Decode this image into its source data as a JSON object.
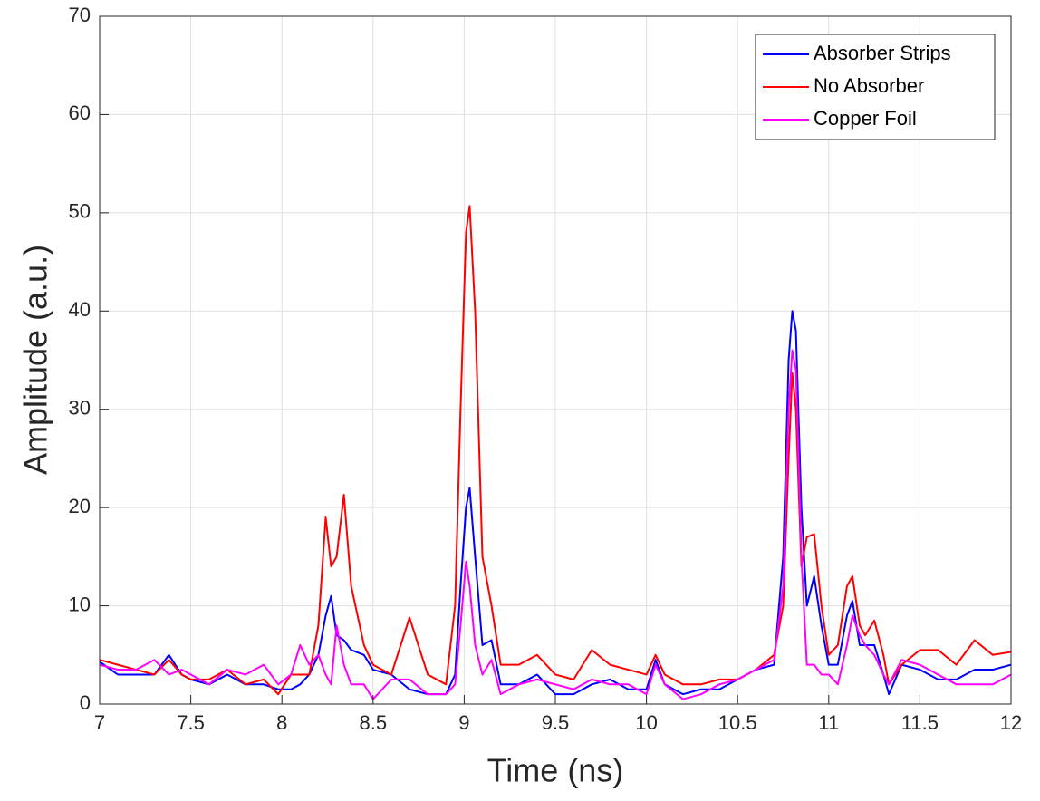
{
  "chart_data": {
    "type": "line",
    "xlabel": "Time (ns)",
    "ylabel": "Amplitude (a.u.)",
    "x": [
      7,
      7.1,
      7.2,
      7.3,
      7.38,
      7.45,
      7.5,
      7.6,
      7.7,
      7.8,
      7.9,
      7.98,
      8.05,
      8.1,
      8.15,
      8.2,
      8.24,
      8.27,
      8.3,
      8.34,
      8.38,
      8.45,
      8.5,
      8.6,
      8.7,
      8.8,
      8.9,
      8.95,
      8.98,
      9.01,
      9.03,
      9.06,
      9.1,
      9.15,
      9.2,
      9.3,
      9.4,
      9.5,
      9.6,
      9.7,
      9.8,
      9.9,
      10,
      10.05,
      10.1,
      10.2,
      10.3,
      10.4,
      10.5,
      10.6,
      10.7,
      10.75,
      10.78,
      10.8,
      10.82,
      10.85,
      10.88,
      10.92,
      10.96,
      11,
      11.05,
      11.1,
      11.13,
      11.17,
      11.2,
      11.25,
      11.3,
      11.33,
      11.4,
      11.5,
      11.6,
      11.7,
      11.8,
      11.9,
      12
    ],
    "series": [
      {
        "name": "Absorber Strips",
        "color": "#0000ff",
        "values": [
          4.3,
          3,
          3,
          3,
          5,
          3,
          2.5,
          2,
          3,
          2,
          2,
          1.5,
          1.5,
          2,
          3,
          5,
          9,
          11,
          7,
          6.5,
          5.5,
          5,
          3.5,
          3,
          1.5,
          1,
          1,
          3,
          12,
          20,
          22,
          15,
          6,
          6.5,
          2,
          2,
          3,
          1,
          1,
          2,
          2.5,
          1.5,
          1.5,
          4.5,
          2,
          1,
          1.5,
          1.5,
          2.5,
          3.5,
          4,
          15,
          35,
          40,
          38,
          20,
          10,
          13,
          8,
          4,
          4,
          9,
          10.5,
          6,
          6,
          6,
          3,
          1,
          4,
          3.5,
          2.5,
          2.5,
          3.5,
          3.5,
          4
        ]
      },
      {
        "name": "No Absorber",
        "color": "#ff0000",
        "values": [
          4.5,
          4,
          3.5,
          3,
          4.5,
          3,
          2.5,
          2.5,
          3.5,
          2,
          2.5,
          1,
          3,
          3,
          3,
          8,
          19,
          14,
          15,
          21.3,
          12,
          6,
          4,
          3,
          8.8,
          3,
          2,
          10,
          30,
          48,
          50.7,
          40,
          15,
          10,
          4,
          4,
          5,
          3,
          2.5,
          5.5,
          4,
          3.5,
          3,
          5,
          3,
          2,
          2,
          2.5,
          2.5,
          3.5,
          5,
          10,
          25,
          33.7,
          30,
          14,
          17,
          17.3,
          10,
          5,
          6,
          12,
          13,
          8,
          7,
          8.5,
          5,
          2,
          4,
          5.5,
          5.5,
          4,
          6.5,
          5,
          5.3
        ]
      },
      {
        "name": "Copper Foil",
        "color": "#ff00ff",
        "values": [
          4,
          3.5,
          3.5,
          4.5,
          3,
          3.5,
          3,
          2,
          3.5,
          3,
          4,
          2,
          3,
          6,
          4,
          5,
          3,
          2,
          8,
          4,
          2,
          2,
          0.5,
          2.5,
          2.5,
          1,
          1,
          2,
          8,
          14.5,
          12,
          6,
          3,
          4.5,
          1,
          2,
          2.5,
          2,
          1.5,
          2.5,
          2,
          2,
          1,
          4,
          2,
          0.5,
          1,
          2,
          2.5,
          3.5,
          4.5,
          12,
          30,
          36,
          34,
          15,
          4,
          4,
          3,
          3,
          2,
          6,
          9,
          7,
          6,
          5,
          3,
          2,
          4.5,
          4,
          3,
          2,
          2,
          2,
          3
        ]
      }
    ],
    "xlim": [
      7,
      12
    ],
    "xticks": [
      7,
      7.5,
      8,
      8.5,
      9,
      9.5,
      10,
      10.5,
      11,
      11.5,
      12
    ],
    "ylim": [
      0,
      70
    ],
    "yticks": [
      0,
      10,
      20,
      30,
      40,
      50,
      60,
      70
    ],
    "grid": true,
    "legend": "top-right"
  }
}
